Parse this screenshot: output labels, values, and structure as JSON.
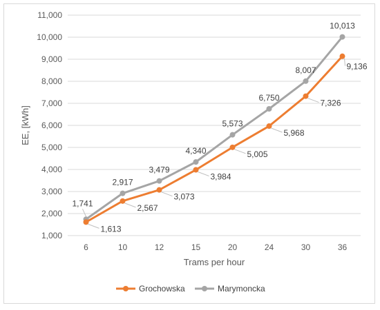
{
  "chart_data": {
    "type": "line",
    "categories": [
      "6",
      "10",
      "12",
      "15",
      "20",
      "24",
      "30",
      "36"
    ],
    "series": [
      {
        "name": "Grochowska",
        "color": "#ed7d31",
        "values": [
          1613,
          2567,
          3073,
          3984,
          5005,
          5968,
          7326,
          9136
        ],
        "labels": [
          "1,613",
          "2,567",
          "3,073",
          "3,984",
          "5,005",
          "5,968",
          "7,326",
          "9,136"
        ]
      },
      {
        "name": "Marymoncka",
        "color": "#a5a5a5",
        "values": [
          1741,
          2917,
          3479,
          4340,
          5573,
          6750,
          8007,
          10013
        ],
        "labels": [
          "1,741",
          "2,917",
          "3,479",
          "4,340",
          "5,573",
          "6,750",
          "8,007",
          "10,013"
        ]
      }
    ],
    "xlabel": "Trams per hour",
    "ylabel": "EE, [kWh]",
    "ylim": [
      1000,
      11000
    ],
    "yticks": [
      "1,000",
      "2,000",
      "3,000",
      "4,000",
      "5,000",
      "6,000",
      "7,000",
      "8,000",
      "9,000",
      "10,000",
      "11,000"
    ],
    "grid": true,
    "legend_position": "bottom"
  }
}
